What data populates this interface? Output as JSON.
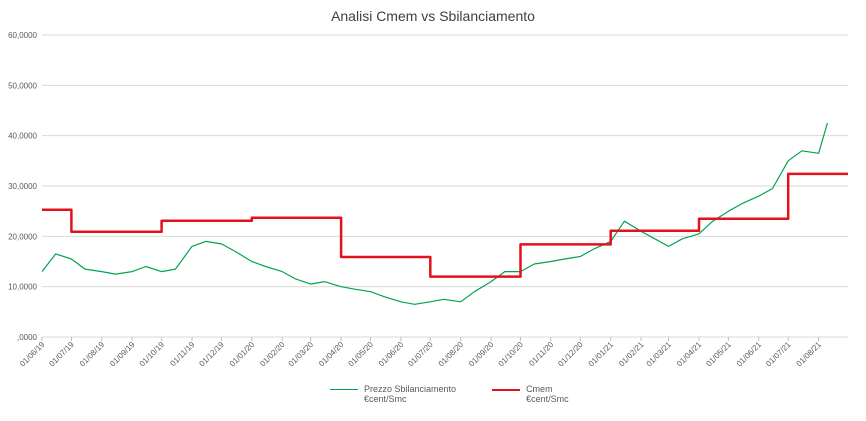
{
  "chart_data": {
    "type": "line",
    "title": "Analisi Cmem vs Sbilanciamento",
    "xlabel": "",
    "ylabel": "",
    "ylim": [
      0,
      60
    ],
    "y_ticks": [
      ",0000",
      "10,0000",
      "20,0000",
      "30,0000",
      "40,0000",
      "50,0000",
      "60,0000"
    ],
    "x_ticks": [
      "01/06/19",
      "01/07/19",
      "01/08/19",
      "01/09/19",
      "01/10/19",
      "01/11/19",
      "01/12/19",
      "01/01/20",
      "01/02/20",
      "01/03/20",
      "01/04/20",
      "01/05/20",
      "01/06/20",
      "01/07/20",
      "01/08/20",
      "01/09/20",
      "01/10/20",
      "01/11/20",
      "01/12/20",
      "01/01/21",
      "01/02/21",
      "01/03/21",
      "01/04/21",
      "01/05/21",
      "01/06/21",
      "01/07/21",
      "01/08/21"
    ],
    "grid": true,
    "legend_position": "bottom",
    "series": [
      {
        "name": "Prezzo Sbilanciamento €cent/Smc",
        "color": "#00A550",
        "points": [
          [
            "01/06/19",
            13.0
          ],
          [
            "15/06/19",
            16.5
          ],
          [
            "01/07/19",
            15.5
          ],
          [
            "15/07/19",
            13.5
          ],
          [
            "01/08/19",
            13.0
          ],
          [
            "15/08/19",
            12.5
          ],
          [
            "01/09/19",
            13.0
          ],
          [
            "15/09/19",
            14.0
          ],
          [
            "01/10/19",
            13.0
          ],
          [
            "15/10/19",
            13.5
          ],
          [
            "01/11/19",
            18.0
          ],
          [
            "15/11/19",
            19.0
          ],
          [
            "01/12/19",
            18.5
          ],
          [
            "15/12/19",
            17.0
          ],
          [
            "01/01/20",
            15.0
          ],
          [
            "15/01/20",
            14.0
          ],
          [
            "01/02/20",
            13.0
          ],
          [
            "15/02/20",
            11.5
          ],
          [
            "01/03/20",
            10.5
          ],
          [
            "15/03/20",
            11.0
          ],
          [
            "01/04/20",
            10.0
          ],
          [
            "15/04/20",
            9.5
          ],
          [
            "01/05/20",
            9.0
          ],
          [
            "15/05/20",
            8.0
          ],
          [
            "01/06/20",
            7.0
          ],
          [
            "15/06/20",
            6.5
          ],
          [
            "01/07/20",
            7.0
          ],
          [
            "15/07/20",
            7.5
          ],
          [
            "01/08/20",
            7.0
          ],
          [
            "15/08/20",
            9.0
          ],
          [
            "01/09/20",
            11.0
          ],
          [
            "15/09/20",
            13.0
          ],
          [
            "01/10/20",
            13.0
          ],
          [
            "15/10/20",
            14.5
          ],
          [
            "01/11/20",
            15.0
          ],
          [
            "15/11/20",
            15.5
          ],
          [
            "01/12/20",
            16.0
          ],
          [
            "15/12/20",
            17.5
          ],
          [
            "01/01/21",
            19.0
          ],
          [
            "15/01/21",
            23.0
          ],
          [
            "01/02/21",
            21.0
          ],
          [
            "15/02/21",
            19.5
          ],
          [
            "01/03/21",
            18.0
          ],
          [
            "15/03/21",
            19.5
          ],
          [
            "01/04/21",
            20.5
          ],
          [
            "15/04/21",
            23.0
          ],
          [
            "01/05/21",
            25.0
          ],
          [
            "15/05/21",
            26.5
          ],
          [
            "01/06/21",
            28.0
          ],
          [
            "15/06/21",
            29.5
          ],
          [
            "01/07/21",
            35.0
          ],
          [
            "15/07/21",
            37.0
          ],
          [
            "01/08/21",
            36.5
          ],
          [
            "10/08/21",
            42.5
          ]
        ]
      },
      {
        "name": "Cmem €cent/Smc",
        "color": "#E3111B",
        "points": [
          [
            "01/06/19",
            25.3
          ],
          [
            "01/07/19",
            25.3
          ],
          [
            "01/07/19",
            20.9
          ],
          [
            "01/10/19",
            20.9
          ],
          [
            "01/10/19",
            23.1
          ],
          [
            "01/01/20",
            23.1
          ],
          [
            "01/01/20",
            23.7
          ],
          [
            "01/04/20",
            23.7
          ],
          [
            "01/04/20",
            15.9
          ],
          [
            "01/07/20",
            15.9
          ],
          [
            "01/07/20",
            12.0
          ],
          [
            "01/10/20",
            12.0
          ],
          [
            "01/10/20",
            18.4
          ],
          [
            "01/01/21",
            18.4
          ],
          [
            "01/01/21",
            21.1
          ],
          [
            "01/04/21",
            21.1
          ],
          [
            "01/04/21",
            23.5
          ],
          [
            "01/07/21",
            23.5
          ],
          [
            "01/07/21",
            32.4
          ],
          [
            "31/08/21",
            32.4
          ]
        ]
      }
    ]
  }
}
